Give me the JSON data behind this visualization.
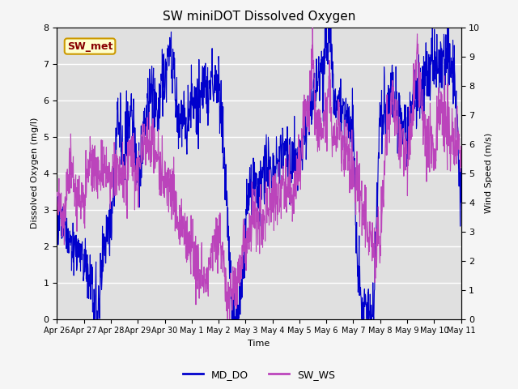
{
  "title": "SW miniDOT Dissolved Oxygen",
  "xlabel": "Time",
  "ylabel_left": "Dissolved Oxygen (mg/l)",
  "ylabel_right": "Wind Speed (m/s)",
  "ylim_left": [
    0.0,
    8.0
  ],
  "ylim_right": [
    0.0,
    10.0
  ],
  "yticks_left": [
    0.0,
    1.0,
    2.0,
    3.0,
    4.0,
    5.0,
    6.0,
    7.0,
    8.0
  ],
  "yticks_right": [
    0.0,
    1.0,
    2.0,
    3.0,
    4.0,
    5.0,
    6.0,
    7.0,
    8.0,
    9.0,
    10.0
  ],
  "xtick_labels": [
    "Apr 26",
    "Apr 27",
    "Apr 28",
    "Apr 29",
    "Apr 30",
    "May 1",
    "May 2",
    "May 3",
    "May 4",
    "May 5",
    "May 6",
    "May 7",
    "May 8",
    "May 9",
    "May 10",
    "May 11"
  ],
  "line_md_do_color": "#0000cc",
  "line_sw_ws_color": "#bb44bb",
  "line_width": 0.8,
  "legend_labels": [
    "MD_DO",
    "SW_WS"
  ],
  "annotation_text": "SW_met",
  "annotation_color": "#880000",
  "bg_color": "#e0e0e0",
  "fig_bg_color": "#f5f5f5",
  "title_fontsize": 11,
  "label_fontsize": 8,
  "tick_fontsize": 8,
  "legend_fontsize": 9
}
